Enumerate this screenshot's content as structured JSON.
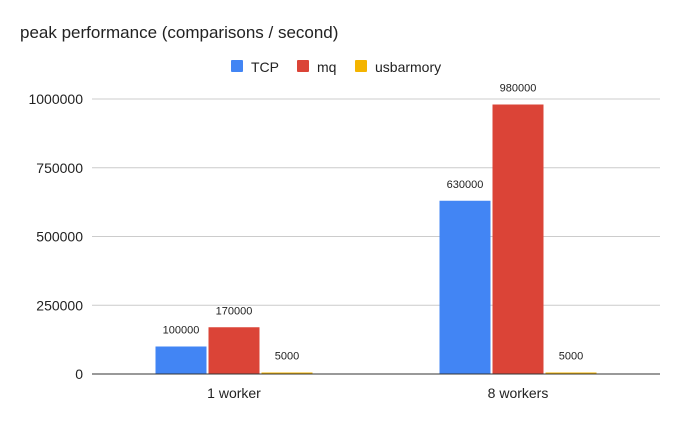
{
  "chart_data": {
    "type": "bar",
    "title": "peak performance (comparisons / second)",
    "xlabel": "",
    "ylabel": "",
    "categories": [
      "1 worker",
      "8 workers"
    ],
    "series": [
      {
        "name": "TCP",
        "color": "#4285f4",
        "values": [
          100000,
          630000
        ],
        "labels": [
          "100000",
          "630000"
        ]
      },
      {
        "name": "mq",
        "color": "#db4437",
        "values": [
          170000,
          980000
        ],
        "labels": [
          "170000",
          "980000"
        ]
      },
      {
        "name": "usbarmory",
        "color": "#f4b400",
        "values": [
          5000,
          5000
        ],
        "labels": [
          "5000",
          "5000"
        ]
      }
    ],
    "ylim": [
      0,
      1000000
    ],
    "yticks": [
      0,
      250000,
      500000,
      750000,
      1000000
    ],
    "ytick_labels": [
      "0",
      "250000",
      "500000",
      "750000",
      "1000000"
    ],
    "grid": true,
    "legend": "top-center",
    "colors": {
      "grid": "#cccccc",
      "axis": "#333333",
      "text": "#222222"
    }
  }
}
